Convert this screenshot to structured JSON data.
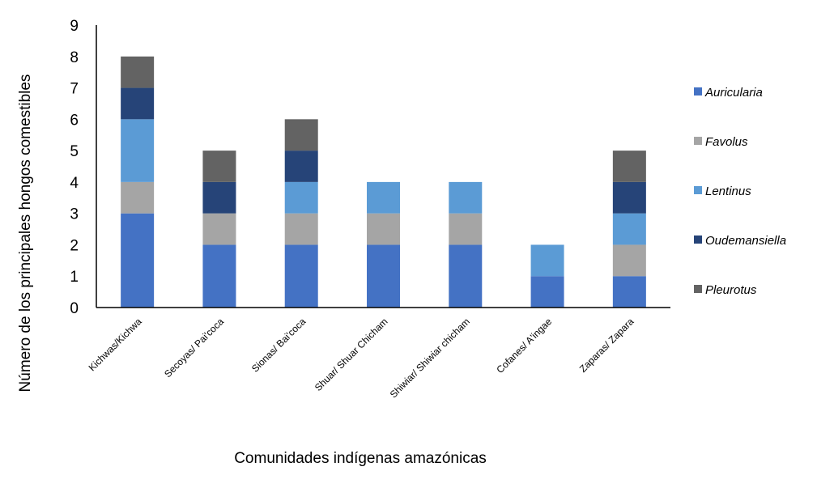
{
  "chart_data": {
    "type": "bar",
    "stacked": true,
    "title": "",
    "xlabel": "Comunidades indígenas amazónicas",
    "ylabel": "Número de los principales hongos comestibles",
    "ylim": [
      0,
      9
    ],
    "yticks": [
      "0",
      "1",
      "2",
      "3",
      "4",
      "5",
      "6",
      "7",
      "8",
      "9"
    ],
    "grid": false,
    "legend_position": "right",
    "categories": [
      "Kichwas/Kichwa",
      "Secoyas/ Pai'coca",
      "Sionas/ Bai'coca",
      "Shuar/ Shuar Chicham",
      "Shiwiar/ Shiwiar chicham",
      "Cofanes/ A'ingae",
      "Zaparas/ Zapara"
    ],
    "series": [
      {
        "name": "Auricularia",
        "color": "#4472c4",
        "values": [
          3,
          2,
          2,
          2,
          2,
          1,
          1
        ]
      },
      {
        "name": "Favolus",
        "color": "#a5a5a5",
        "values": [
          1,
          1,
          1,
          1,
          1,
          0,
          1
        ]
      },
      {
        "name": "Lentinus",
        "color": "#5b9bd5",
        "values": [
          2,
          0,
          1,
          1,
          1,
          1,
          1
        ]
      },
      {
        "name": "Oudemansiella",
        "color": "#264478",
        "values": [
          1,
          1,
          1,
          0,
          0,
          0,
          1
        ]
      },
      {
        "name": "Pleurotus",
        "color": "#636363",
        "values": [
          1,
          1,
          1,
          0,
          0,
          0,
          1
        ]
      }
    ]
  }
}
